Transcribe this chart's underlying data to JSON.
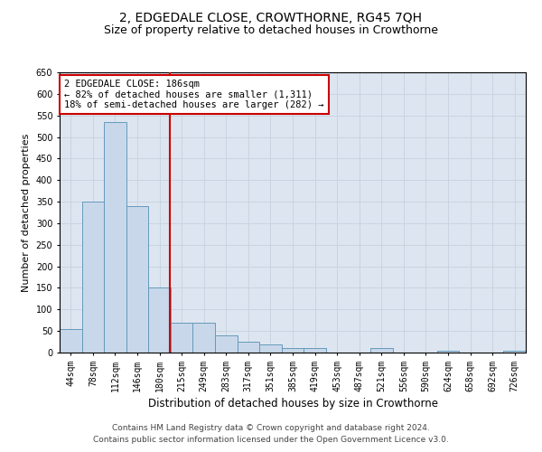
{
  "title": "2, EDGEDALE CLOSE, CROWTHORNE, RG45 7QH",
  "subtitle": "Size of property relative to detached houses in Crowthorne",
  "xlabel": "Distribution of detached houses by size in Crowthorne",
  "ylabel": "Number of detached properties",
  "footer1": "Contains HM Land Registry data © Crown copyright and database right 2024.",
  "footer2": "Contains public sector information licensed under the Open Government Licence v3.0.",
  "bin_labels": [
    "44sqm",
    "78sqm",
    "112sqm",
    "146sqm",
    "180sqm",
    "215sqm",
    "249sqm",
    "283sqm",
    "317sqm",
    "351sqm",
    "385sqm",
    "419sqm",
    "453sqm",
    "487sqm",
    "521sqm",
    "556sqm",
    "590sqm",
    "624sqm",
    "658sqm",
    "692sqm",
    "726sqm"
  ],
  "bar_values": [
    55,
    350,
    535,
    340,
    150,
    70,
    70,
    40,
    25,
    18,
    10,
    10,
    0,
    0,
    10,
    0,
    0,
    5,
    0,
    0,
    5
  ],
  "bar_color": "#c8d8ea",
  "bar_edge_color": "#6699bb",
  "grid_color": "#c8d4e0",
  "background_color": "#dde6f0",
  "vline_color": "#cc0000",
  "vline_pos": 4.48,
  "annotation_line1": "2 EDGEDALE CLOSE: 186sqm",
  "annotation_line2": "← 82% of detached houses are smaller (1,311)",
  "annotation_line3": "18% of semi-detached houses are larger (282) →",
  "annotation_box_color": "#ffffff",
  "annotation_box_edge": "#cc0000",
  "ylim": [
    0,
    650
  ],
  "yticks": [
    0,
    50,
    100,
    150,
    200,
    250,
    300,
    350,
    400,
    450,
    500,
    550,
    600,
    650
  ],
  "title_fontsize": 10,
  "subtitle_fontsize": 9,
  "annot_fontsize": 7.5,
  "footer_fontsize": 6.5,
  "xlabel_fontsize": 8.5,
  "ylabel_fontsize": 8,
  "tick_fontsize": 7
}
